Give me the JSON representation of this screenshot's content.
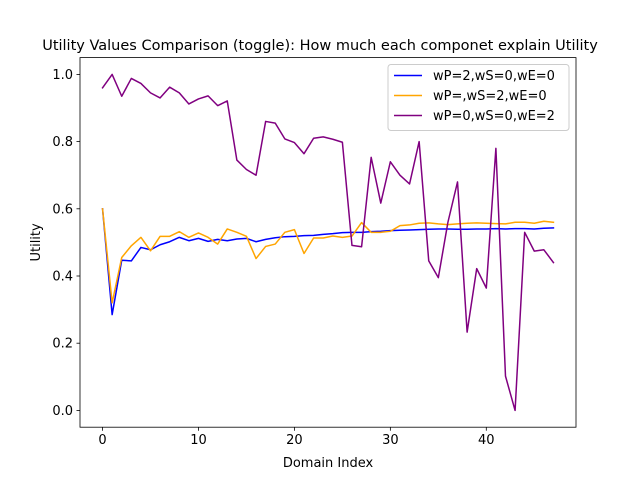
{
  "chart_data": {
    "type": "line",
    "title": "Utility Values Comparison (toggle): How much each componet explain Utility",
    "xlabel": "Domain Index",
    "ylabel": "Utility",
    "xlim": [
      -2.35,
      49.35
    ],
    "ylim": [
      -0.05,
      1.05
    ],
    "xticks": [
      0,
      10,
      20,
      30,
      40
    ],
    "yticks": [
      0.0,
      0.2,
      0.4,
      0.6,
      0.8,
      1.0
    ],
    "xtick_labels": [
      "0",
      "10",
      "20",
      "30",
      "40"
    ],
    "ytick_labels": [
      "0.0",
      "0.2",
      "0.4",
      "0.6",
      "0.8",
      "1.0"
    ],
    "grid": false,
    "legend_position": "top-right",
    "x": [
      0,
      1,
      2,
      3,
      4,
      5,
      6,
      7,
      8,
      9,
      10,
      11,
      12,
      13,
      14,
      15,
      16,
      17,
      18,
      19,
      20,
      21,
      22,
      23,
      24,
      25,
      26,
      27,
      28,
      29,
      30,
      31,
      32,
      33,
      34,
      35,
      36,
      37,
      38,
      39,
      40,
      41,
      42,
      43,
      44,
      45,
      46,
      47
    ],
    "series": [
      {
        "name": "wP=2,wS=0,wE=0",
        "color": "#0000ff",
        "values": [
          0.6,
          0.285,
          0.447,
          0.445,
          0.485,
          0.478,
          0.493,
          0.502,
          0.515,
          0.505,
          0.512,
          0.503,
          0.509,
          0.505,
          0.51,
          0.512,
          0.502,
          0.509,
          0.514,
          0.517,
          0.518,
          0.52,
          0.521,
          0.524,
          0.526,
          0.529,
          0.53,
          0.53,
          0.532,
          0.533,
          0.535,
          0.536,
          0.537,
          0.538,
          0.539,
          0.54,
          0.54,
          0.539,
          0.539,
          0.54,
          0.54,
          0.541,
          0.54,
          0.541,
          0.541,
          0.54,
          0.542,
          0.543
        ]
      },
      {
        "name": "wP=,wS=2,wE=0",
        "color": "#ffa500",
        "values": [
          0.6,
          0.32,
          0.455,
          0.49,
          0.515,
          0.475,
          0.518,
          0.518,
          0.532,
          0.515,
          0.528,
          0.515,
          0.495,
          0.54,
          0.53,
          0.518,
          0.452,
          0.488,
          0.495,
          0.53,
          0.538,
          0.467,
          0.513,
          0.513,
          0.519,
          0.515,
          0.519,
          0.559,
          0.53,
          0.53,
          0.533,
          0.55,
          0.552,
          0.557,
          0.558,
          0.555,
          0.553,
          0.555,
          0.557,
          0.558,
          0.557,
          0.556,
          0.555,
          0.56,
          0.56,
          0.557,
          0.563,
          0.56
        ]
      },
      {
        "name": "wP=0,wS=0,wE=2",
        "color": "#800080",
        "values": [
          0.96,
          1.0,
          0.935,
          0.988,
          0.973,
          0.945,
          0.93,
          0.962,
          0.945,
          0.912,
          0.927,
          0.936,
          0.907,
          0.921,
          0.745,
          0.717,
          0.7,
          0.86,
          0.855,
          0.808,
          0.797,
          0.764,
          0.81,
          0.814,
          0.807,
          0.798,
          0.491,
          0.487,
          0.753,
          0.617,
          0.74,
          0.7,
          0.674,
          0.8,
          0.445,
          0.395,
          0.56,
          0.68,
          0.233,
          0.422,
          0.364,
          0.78,
          0.102,
          0.0,
          0.53,
          0.474,
          0.478,
          0.44
        ]
      }
    ]
  }
}
